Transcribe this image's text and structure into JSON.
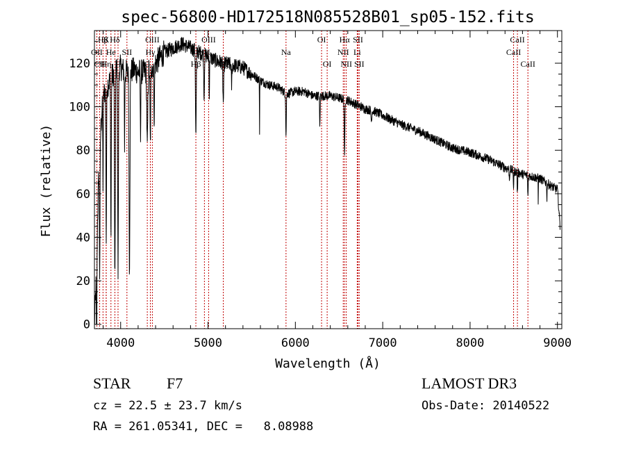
{
  "chart_data": {
    "type": "line",
    "title": "spec-56800-HD172518N085528B01_sp05-152.fits",
    "xlabel": "Wavelength (Å)",
    "ylabel": "Flux (relative)",
    "xlim": [
      3700,
      9050
    ],
    "ylim": [
      -2,
      135
    ],
    "xticks": [
      4000,
      5000,
      6000,
      7000,
      8000,
      9000
    ],
    "yticks": [
      0,
      20,
      40,
      60,
      80,
      100,
      120
    ],
    "lines": [
      {
        "name": "Hβ",
        "wave": 3798,
        "row": 0
      },
      {
        "name": "K",
        "wave": 3834,
        "row": 0
      },
      {
        "name": "Hδ",
        "wave": 3934,
        "row": 0
      },
      {
        "name": "OIII",
        "wave": 4363,
        "row": 0
      },
      {
        "name": "OIII",
        "wave": 5007,
        "row": 0
      },
      {
        "name": "Na",
        "wave": 5893,
        "row": 1
      },
      {
        "name": "OI",
        "wave": 6300,
        "row": 0
      },
      {
        "name": "Hα",
        "wave": 6563,
        "row": 0
      },
      {
        "name": "SII",
        "wave": 6717,
        "row": 0
      },
      {
        "name": "CaII",
        "wave": 8542,
        "row": 0
      },
      {
        "name": "OII",
        "wave": 3727,
        "row": 1
      },
      {
        "name": "He",
        "wave": 3889,
        "row": 1
      },
      {
        "name": "SII",
        "wave": 4072,
        "row": 1
      },
      {
        "name": "Hγ",
        "wave": 4340,
        "row": 1
      },
      {
        "name": "NII",
        "wave": 4959,
        "row": 1
      },
      {
        "name": "NII",
        "wave": 6548,
        "row": 1
      },
      {
        "name": "Li",
        "wave": 6708,
        "row": 1
      },
      {
        "name": "CaII",
        "wave": 8498,
        "row": 1
      },
      {
        "name": "CII",
        "wave": 3760,
        "row": 2
      },
      {
        "name": "Hη",
        "wave": 3835,
        "row": 2
      },
      {
        "name": "H",
        "wave": 3970,
        "row": 2
      },
      {
        "name": "G",
        "wave": 4305,
        "row": 2
      },
      {
        "name": "Hβ",
        "wave": 4861,
        "row": 2
      },
      {
        "name": "Mg",
        "wave": 5175,
        "row": 2
      },
      {
        "name": "OI",
        "wave": 6364,
        "row": 2
      },
      {
        "name": "NII",
        "wave": 6583,
        "row": 2
      },
      {
        "name": "SII",
        "wave": 6731,
        "row": 2
      },
      {
        "name": "CaII",
        "wave": 8662,
        "row": 2
      }
    ],
    "spectrum_knots": [
      [
        3700,
        0
      ],
      [
        3715,
        15
      ],
      [
        3730,
        40
      ],
      [
        3750,
        70
      ],
      [
        3780,
        95
      ],
      [
        3800,
        105
      ],
      [
        3850,
        110
      ],
      [
        3900,
        114
      ],
      [
        3950,
        118
      ],
      [
        4000,
        118
      ],
      [
        4050,
        116
      ],
      [
        4100,
        116
      ],
      [
        4150,
        117
      ],
      [
        4200,
        116
      ],
      [
        4300,
        116
      ],
      [
        4400,
        120
      ],
      [
        4500,
        125
      ],
      [
        4600,
        127
      ],
      [
        4700,
        129
      ],
      [
        4800,
        127
      ],
      [
        4900,
        125
      ],
      [
        5000,
        123
      ],
      [
        5100,
        121
      ],
      [
        5200,
        120
      ],
      [
        5300,
        119
      ],
      [
        5400,
        118
      ],
      [
        5500,
        115
      ],
      [
        5600,
        112
      ],
      [
        5700,
        110
      ],
      [
        5800,
        109
      ],
      [
        5900,
        106
      ],
      [
        6000,
        107
      ],
      [
        6100,
        107
      ],
      [
        6200,
        105
      ],
      [
        6300,
        105
      ],
      [
        6400,
        105
      ],
      [
        6500,
        104
      ],
      [
        6600,
        103
      ],
      [
        6700,
        101
      ],
      [
        6800,
        99
      ],
      [
        6900,
        98
      ],
      [
        7000,
        96
      ],
      [
        7200,
        92
      ],
      [
        7400,
        89
      ],
      [
        7600,
        85
      ],
      [
        7800,
        81
      ],
      [
        8000,
        79
      ],
      [
        8200,
        76
      ],
      [
        8400,
        72
      ],
      [
        8600,
        69
      ],
      [
        8800,
        67
      ],
      [
        8950,
        63
      ],
      [
        9000,
        62
      ],
      [
        9030,
        45
      ]
    ],
    "absorption": [
      [
        3725,
        60,
        4
      ],
      [
        3760,
        55,
        5
      ],
      [
        3798,
        40,
        4
      ],
      [
        3835,
        70,
        5
      ],
      [
        3889,
        75,
        5
      ],
      [
        3934,
        100,
        6
      ],
      [
        3970,
        95,
        6
      ],
      [
        4045,
        35,
        4
      ],
      [
        4101,
        90,
        7
      ],
      [
        4227,
        30,
        4
      ],
      [
        4305,
        35,
        8
      ],
      [
        4340,
        35,
        6
      ],
      [
        4384,
        25,
        5
      ],
      [
        4861,
        40,
        6
      ],
      [
        4955,
        20,
        5
      ],
      [
        5015,
        18,
        4
      ],
      [
        5175,
        18,
        7
      ],
      [
        5270,
        10,
        5
      ],
      [
        5590,
        25,
        2
      ],
      [
        5893,
        20,
        5
      ],
      [
        6280,
        15,
        4
      ],
      [
        6563,
        28,
        5
      ],
      [
        6870,
        5,
        6
      ],
      [
        8450,
        5,
        4
      ],
      [
        8498,
        8,
        4
      ],
      [
        8542,
        10,
        4
      ],
      [
        8662,
        10,
        4
      ],
      [
        8780,
        12,
        2
      ],
      [
        8880,
        8,
        3
      ]
    ]
  },
  "info": {
    "object_class": "STAR",
    "subclass": "F7",
    "survey": "LAMOST DR3",
    "redshift": "cz = 22.5 ± 23.7 km/s",
    "obs_date": "Obs-Date: 20140522",
    "coords": "RA = 261.05341, DEC =   8.08988"
  }
}
